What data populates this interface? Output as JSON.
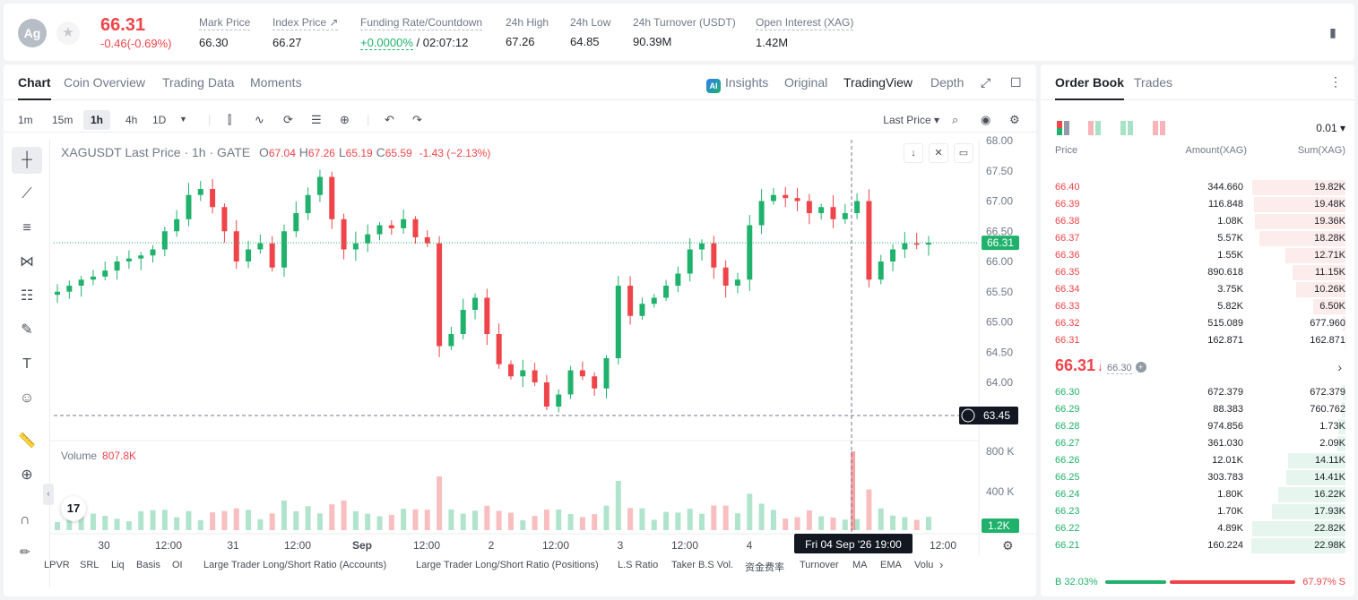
{
  "ticker": {
    "avatar": "Ag",
    "last_price": "66.31",
    "change": "-0.46(-0.69%)",
    "stats": [
      {
        "label": "Mark Price",
        "value": "66.30"
      },
      {
        "label": "Index Price ↗",
        "value": "66.27"
      },
      {
        "label": "Funding Rate/Countdown",
        "value_rate": "+0.0000%",
        "value_countdown": "/ 02:07:12"
      },
      {
        "label": "24h High",
        "value": "67.26"
      },
      {
        "label": "24h Low",
        "value": "64.85"
      },
      {
        "label": "24h Turnover (USDT)",
        "value": "90.39M"
      },
      {
        "label": "Open Interest (XAG)",
        "value": "1.42M"
      }
    ]
  },
  "chart_tabs": [
    "Chart",
    "Coin Overview",
    "Trading Data",
    "Moments"
  ],
  "view_tabs": {
    "ai_badge": "AI",
    "insights": "Insights",
    "original": "Original",
    "tradingview": "TradingView",
    "depth": "Depth"
  },
  "intervals": [
    "1m",
    "15m",
    "1h",
    "4h",
    "1D"
  ],
  "active_interval": "1h",
  "price_source": "Last Price ▾",
  "legend": {
    "symbol": "XAGUSDT Last Price · 1h · GATE",
    "o_label": "O",
    "o": "67.04",
    "h_label": "H",
    "h": "67.26",
    "l_label": "L",
    "l": "65.19",
    "c_label": "C",
    "c": "65.59",
    "chg": "-1.43 (−2.13%)"
  },
  "volume_legend": {
    "label": "Volume",
    "value": "807.8K"
  },
  "tv_logo": "17",
  "indicators": [
    "LPVR",
    "SRL",
    "Liq",
    "Basis",
    "OI",
    "Large Trader Long/Short Ratio (Accounts)",
    "Large Trader Long/Short Ratio (Positions)",
    "L.S Ratio",
    "Taker B.S Vol.",
    "资金费率",
    "Turnover",
    "MA",
    "EMA",
    "Volu"
  ],
  "chart_data": {
    "type": "candlestick",
    "symbol": "XAGUSDT",
    "interval": "1h",
    "y_ticks": [
      "68.00",
      "67.50",
      "67.00",
      "66.50",
      "66.00",
      "65.50",
      "65.00",
      "64.50",
      "64.00"
    ],
    "y_range": [
      63.45,
      68.0
    ],
    "current_price_label": "66.31",
    "crosshair_price_label": "63.45",
    "volume_ticks": [
      "800 K",
      "400 K"
    ],
    "current_volume_label": "1.2K",
    "x_ticks": [
      "30",
      "12:00",
      "31",
      "12:00",
      "Sep",
      "12:00",
      "2",
      "12:00",
      "3",
      "12:00",
      "4",
      "12:00"
    ],
    "crosshair_time_label": "Fri 04 Sep '26   19:00",
    "close_path": [
      65.5,
      65.6,
      65.7,
      65.75,
      65.85,
      66.0,
      66.05,
      66.1,
      66.2,
      66.5,
      66.7,
      67.1,
      67.2,
      66.9,
      66.5,
      66.0,
      66.2,
      66.3,
      65.9,
      66.5,
      66.8,
      67.1,
      67.4,
      66.7,
      66.2,
      66.3,
      66.45,
      66.6,
      66.55,
      66.7,
      66.4,
      66.3,
      64.6,
      64.8,
      65.2,
      65.4,
      64.8,
      64.3,
      64.1,
      64.2,
      64.0,
      63.6,
      63.8,
      64.2,
      64.1,
      63.9,
      64.4,
      65.6,
      65.1,
      65.3,
      65.4,
      65.6,
      65.8,
      66.2,
      66.3,
      65.9,
      65.6,
      65.7,
      66.6,
      67.0,
      67.1,
      67.05,
      67.0,
      66.8,
      66.9,
      66.7,
      66.8,
      67.0,
      65.7,
      66.0,
      66.2,
      66.3,
      66.28,
      66.31
    ]
  },
  "orderbook": {
    "tabs": [
      "Order Book",
      "Trades"
    ],
    "precision": "0.01 ▾",
    "headers": {
      "price": "Price",
      "amount": "Amount(XAG)",
      "sum": "Sum(XAG)"
    },
    "asks": [
      {
        "price": "66.40",
        "amount": "344.660",
        "sum": "19.82K",
        "depth": 0.99
      },
      {
        "price": "66.39",
        "amount": "116.848",
        "sum": "19.48K",
        "depth": 0.97
      },
      {
        "price": "66.38",
        "amount": "1.08K",
        "sum": "19.36K",
        "depth": 0.96
      },
      {
        "price": "66.37",
        "amount": "5.57K",
        "sum": "18.28K",
        "depth": 0.91
      },
      {
        "price": "66.36",
        "amount": "1.55K",
        "sum": "12.71K",
        "depth": 0.64
      },
      {
        "price": "66.35",
        "amount": "890.618",
        "sum": "11.15K",
        "depth": 0.56
      },
      {
        "price": "66.34",
        "amount": "3.75K",
        "sum": "10.26K",
        "depth": 0.52
      },
      {
        "price": "66.33",
        "amount": "5.82K",
        "sum": "6.50K",
        "depth": 0.34
      },
      {
        "price": "66.32",
        "amount": "515.089",
        "sum": "677.960",
        "depth": 0.03
      },
      {
        "price": "66.31",
        "amount": "162.871",
        "sum": "162.871",
        "depth": 0.01
      }
    ],
    "mid": {
      "price": "66.31",
      "arrow": "↓",
      "mark": "66.30",
      "info": "+"
    },
    "bids": [
      {
        "price": "66.30",
        "amount": "672.379",
        "sum": "672.379",
        "depth": 0.03
      },
      {
        "price": "66.29",
        "amount": "88.383",
        "sum": "760.762",
        "depth": 0.04
      },
      {
        "price": "66.28",
        "amount": "974.856",
        "sum": "1.73K",
        "depth": 0.08
      },
      {
        "price": "66.27",
        "amount": "361.030",
        "sum": "2.09K",
        "depth": 0.09
      },
      {
        "price": "66.26",
        "amount": "12.01K",
        "sum": "14.11K",
        "depth": 0.61
      },
      {
        "price": "66.25",
        "amount": "303.783",
        "sum": "14.41K",
        "depth": 0.63
      },
      {
        "price": "66.24",
        "amount": "1.80K",
        "sum": "16.22K",
        "depth": 0.71
      },
      {
        "price": "66.23",
        "amount": "1.70K",
        "sum": "17.93K",
        "depth": 0.78
      },
      {
        "price": "66.22",
        "amount": "4.89K",
        "sum": "22.82K",
        "depth": 0.99
      },
      {
        "price": "66.21",
        "amount": "160.224",
        "sum": "22.98K",
        "depth": 1.0
      }
    ],
    "ratio": {
      "buy_label": "B 32.03%",
      "sell_label": "67.97% S",
      "buy": 0.3203
    }
  },
  "colors": {
    "up": "#20b26c",
    "down": "#ef454a"
  }
}
